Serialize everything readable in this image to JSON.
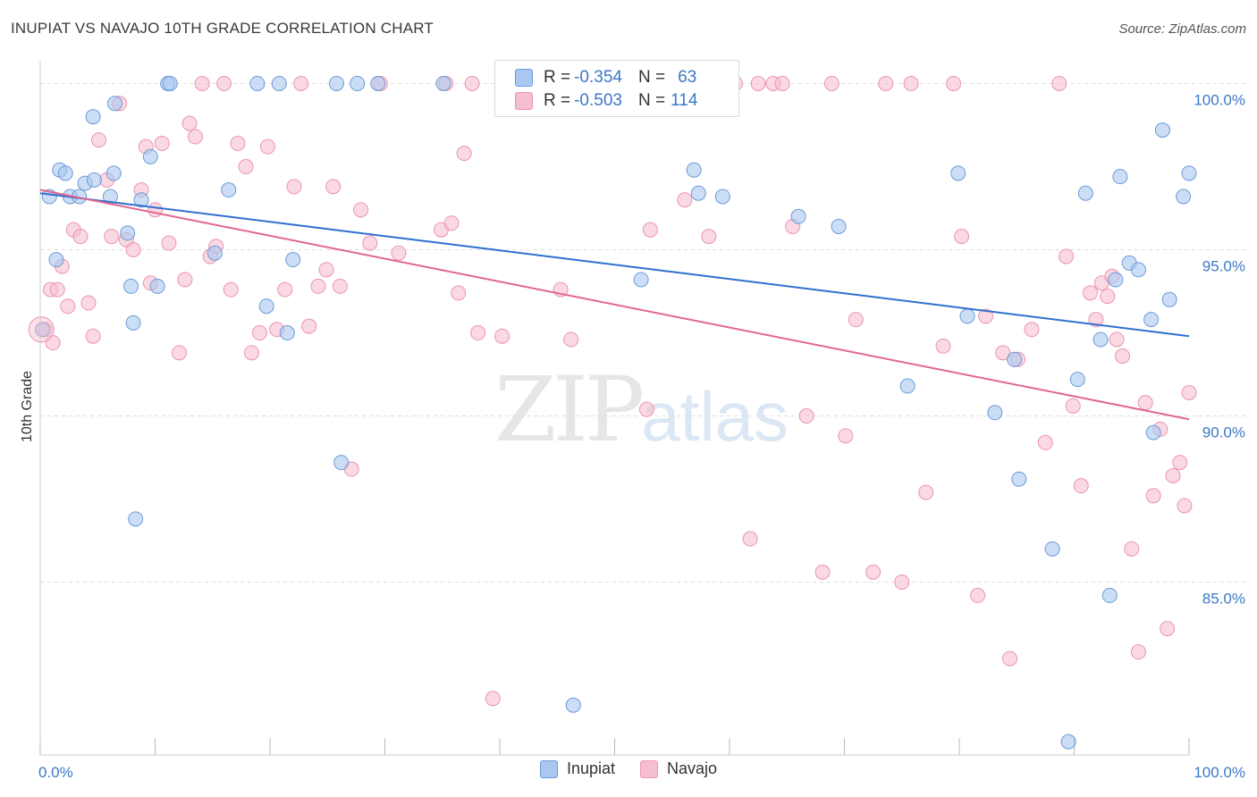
{
  "title": "INUPIAT VS NAVAJO 10TH GRADE CORRELATION CHART",
  "source": "Source: ZipAtlas.com",
  "watermark": {
    "zip": "ZIP",
    "atlas": "atlas"
  },
  "colors": {
    "inupiat_fill": "#a9c8ef",
    "inupiat_stroke": "#6b9bd8",
    "inupiat_line": "#2f6fcf",
    "navajo_fill": "#f6bfd0",
    "navajo_stroke": "#ec94b1",
    "navajo_line": "#e0678f",
    "tick_label": "#3b78c8",
    "grid": "#dddddd"
  },
  "legend": {
    "rows": [
      {
        "r_label": "R = ",
        "r_value": "-0.354",
        "n_label": "N = ",
        "n_value": "63"
      },
      {
        "r_label": "R = ",
        "r_value": "-0.503",
        "n_label": "N = ",
        "n_value": "114"
      }
    ]
  },
  "bottom_legend": [
    "Inupiat",
    "Navajo"
  ],
  "chart_data": {
    "type": "scatter",
    "title": "INUPIAT VS NAVAJO 10TH GRADE CORRELATION CHART",
    "xlabel": "",
    "ylabel": "10th Grade",
    "xlim": [
      0,
      100
    ],
    "ylim": [
      79.8,
      100.9
    ],
    "x_tick_labels": [
      "0.0%",
      "100.0%"
    ],
    "y_ticks": [
      100,
      95,
      90,
      85
    ],
    "y_tick_labels": [
      "100.0%",
      "95.0%",
      "90.0%",
      "85.0%"
    ],
    "grid": "horizontal dashed",
    "legend_position": "top-center",
    "series": [
      {
        "name": "Inupiat",
        "r": -0.354,
        "n": 63,
        "trend": {
          "x": [
            0,
            100
          ],
          "y": [
            96.7,
            92.4
          ]
        },
        "points": [
          [
            0.2,
            92.6
          ],
          [
            0.8,
            96.6
          ],
          [
            1.4,
            94.7
          ],
          [
            1.7,
            97.4
          ],
          [
            2.2,
            97.3
          ],
          [
            2.6,
            96.6
          ],
          [
            3.4,
            96.6
          ],
          [
            3.9,
            97.0
          ],
          [
            4.6,
            99.0
          ],
          [
            4.7,
            97.1
          ],
          [
            6.1,
            96.6
          ],
          [
            6.4,
            97.3
          ],
          [
            6.5,
            99.4
          ],
          [
            7.6,
            95.5
          ],
          [
            7.9,
            93.9
          ],
          [
            8.1,
            92.8
          ],
          [
            8.3,
            86.9
          ],
          [
            8.8,
            96.5
          ],
          [
            9.6,
            97.8
          ],
          [
            10.2,
            93.9
          ],
          [
            11.1,
            100.0
          ],
          [
            11.3,
            100.0
          ],
          [
            15.2,
            94.9
          ],
          [
            16.4,
            96.8
          ],
          [
            18.9,
            100.0
          ],
          [
            19.7,
            93.3
          ],
          [
            20.8,
            100.0
          ],
          [
            21.5,
            92.5
          ],
          [
            22.0,
            94.7
          ],
          [
            25.8,
            100.0
          ],
          [
            26.2,
            88.6
          ],
          [
            27.6,
            100.0
          ],
          [
            29.4,
            100.0
          ],
          [
            35.1,
            100.0
          ],
          [
            46.4,
            81.3
          ],
          [
            52.3,
            94.1
          ],
          [
            56.9,
            97.4
          ],
          [
            57.3,
            96.7
          ],
          [
            59.4,
            96.6
          ],
          [
            66.0,
            96.0
          ],
          [
            69.5,
            95.7
          ],
          [
            75.5,
            90.9
          ],
          [
            79.9,
            97.3
          ],
          [
            80.7,
            93.0
          ],
          [
            83.1,
            90.1
          ],
          [
            84.8,
            91.7
          ],
          [
            85.2,
            88.1
          ],
          [
            88.1,
            86.0
          ],
          [
            89.5,
            80.2
          ],
          [
            90.3,
            91.1
          ],
          [
            91.0,
            96.7
          ],
          [
            92.3,
            92.3
          ],
          [
            93.1,
            84.6
          ],
          [
            93.6,
            94.1
          ],
          [
            94.0,
            97.2
          ],
          [
            94.8,
            94.6
          ],
          [
            95.6,
            94.4
          ],
          [
            96.7,
            92.9
          ],
          [
            96.9,
            89.5
          ],
          [
            97.7,
            98.6
          ],
          [
            98.3,
            93.5
          ],
          [
            99.5,
            96.6
          ],
          [
            100.0,
            97.3
          ]
        ]
      },
      {
        "name": "Navajo",
        "r": -0.503,
        "n": 114,
        "trend": {
          "x": [
            0,
            100
          ],
          "y": [
            96.8,
            89.9
          ]
        },
        "points": [
          [
            0.4,
            92.6
          ],
          [
            0.9,
            93.8
          ],
          [
            1.1,
            92.2
          ],
          [
            1.5,
            93.8
          ],
          [
            1.9,
            94.5
          ],
          [
            2.4,
            93.3
          ],
          [
            2.9,
            95.6
          ],
          [
            3.5,
            95.4
          ],
          [
            4.2,
            93.4
          ],
          [
            4.6,
            92.4
          ],
          [
            5.1,
            98.3
          ],
          [
            5.8,
            97.1
          ],
          [
            6.2,
            95.4
          ],
          [
            6.9,
            99.4
          ],
          [
            7.5,
            95.3
          ],
          [
            8.1,
            95.0
          ],
          [
            8.8,
            96.8
          ],
          [
            9.2,
            98.1
          ],
          [
            9.6,
            94.0
          ],
          [
            10.0,
            96.2
          ],
          [
            10.6,
            98.2
          ],
          [
            11.2,
            95.2
          ],
          [
            12.1,
            91.9
          ],
          [
            12.6,
            94.1
          ],
          [
            13.0,
            98.8
          ],
          [
            13.5,
            98.4
          ],
          [
            14.1,
            100.0
          ],
          [
            14.8,
            94.8
          ],
          [
            15.3,
            95.1
          ],
          [
            16.0,
            100.0
          ],
          [
            16.6,
            93.8
          ],
          [
            17.2,
            98.2
          ],
          [
            17.9,
            97.5
          ],
          [
            18.4,
            91.9
          ],
          [
            19.1,
            92.5
          ],
          [
            19.8,
            98.1
          ],
          [
            20.6,
            92.6
          ],
          [
            21.3,
            93.8
          ],
          [
            22.1,
            96.9
          ],
          [
            22.7,
            100.0
          ],
          [
            23.4,
            92.7
          ],
          [
            24.2,
            93.9
          ],
          [
            24.9,
            94.4
          ],
          [
            25.5,
            96.9
          ],
          [
            26.1,
            93.9
          ],
          [
            27.1,
            88.4
          ],
          [
            27.9,
            96.2
          ],
          [
            28.7,
            95.2
          ],
          [
            29.6,
            100.0
          ],
          [
            31.2,
            94.9
          ],
          [
            34.9,
            95.6
          ],
          [
            35.3,
            100.0
          ],
          [
            35.8,
            95.8
          ],
          [
            36.4,
            93.7
          ],
          [
            36.9,
            97.9
          ],
          [
            37.6,
            100.0
          ],
          [
            38.1,
            92.5
          ],
          [
            39.4,
            81.5
          ],
          [
            40.2,
            92.4
          ],
          [
            45.3,
            93.8
          ],
          [
            46.2,
            92.3
          ],
          [
            47.5,
            100.0
          ],
          [
            49.6,
            100.0
          ],
          [
            52.8,
            90.2
          ],
          [
            53.1,
            95.6
          ],
          [
            56.1,
            96.5
          ],
          [
            58.2,
            95.4
          ],
          [
            60.5,
            100.0
          ],
          [
            61.8,
            86.3
          ],
          [
            62.5,
            100.0
          ],
          [
            63.8,
            100.0
          ],
          [
            64.6,
            100.0
          ],
          [
            65.5,
            95.7
          ],
          [
            66.7,
            90.0
          ],
          [
            68.1,
            85.3
          ],
          [
            68.9,
            100.0
          ],
          [
            70.1,
            89.4
          ],
          [
            71.0,
            92.9
          ],
          [
            72.5,
            85.3
          ],
          [
            73.6,
            100.0
          ],
          [
            75.0,
            85.0
          ],
          [
            75.8,
            100.0
          ],
          [
            77.1,
            87.7
          ],
          [
            78.6,
            92.1
          ],
          [
            79.5,
            100.0
          ],
          [
            80.2,
            95.4
          ],
          [
            81.6,
            84.6
          ],
          [
            82.3,
            93.0
          ],
          [
            83.8,
            91.9
          ],
          [
            84.4,
            82.7
          ],
          [
            85.1,
            91.7
          ],
          [
            86.3,
            92.6
          ],
          [
            87.5,
            89.2
          ],
          [
            88.7,
            100.0
          ],
          [
            89.3,
            94.8
          ],
          [
            89.9,
            90.3
          ],
          [
            90.6,
            87.9
          ],
          [
            91.4,
            93.7
          ],
          [
            91.9,
            92.9
          ],
          [
            92.4,
            94.0
          ],
          [
            92.9,
            93.6
          ],
          [
            93.3,
            94.2
          ],
          [
            93.7,
            92.3
          ],
          [
            94.2,
            91.8
          ],
          [
            95.0,
            86.0
          ],
          [
            95.6,
            82.9
          ],
          [
            96.2,
            90.4
          ],
          [
            96.9,
            87.6
          ],
          [
            97.5,
            89.6
          ],
          [
            98.1,
            83.6
          ],
          [
            98.6,
            88.2
          ],
          [
            99.2,
            88.6
          ],
          [
            99.6,
            87.3
          ],
          [
            100.0,
            90.7
          ]
        ]
      }
    ]
  }
}
